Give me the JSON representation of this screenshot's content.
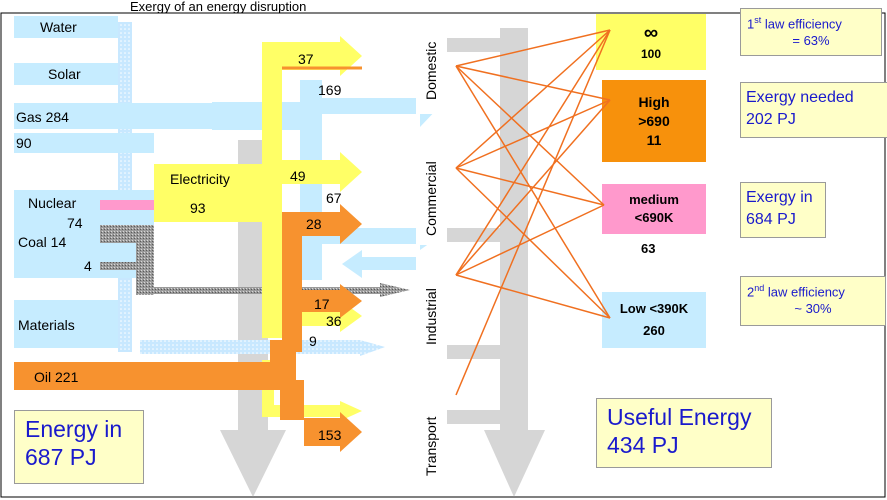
{
  "caption_top": "Exergy of an energy disruption",
  "sources": {
    "water": "Water",
    "solar": "Solar",
    "gas": "Gas 284",
    "gas_sub": "90",
    "nuclear": "Nuclear",
    "coal_top": "74",
    "coal": "Coal 14",
    "coal_small": "4",
    "materials": "Materials",
    "oil": "Oil 221"
  },
  "conversion": {
    "electricity": "Electricity",
    "electricity_value": "93"
  },
  "flows": {
    "f37": "37",
    "f169": "169",
    "f49": "49",
    "f67": "67",
    "f28": "28",
    "f17": "17",
    "f36": "36",
    "f9": "9",
    "f153": "153"
  },
  "sectors": [
    "Domestic",
    "Commercial",
    "Industrial",
    "Transport"
  ],
  "exergy_levels": {
    "infinite": {
      "symbol": "∞",
      "value": "100"
    },
    "high": {
      "line1": "High",
      "line2": ">690",
      "value": "11"
    },
    "medium": {
      "line1": "medium",
      "line2": "<690K",
      "value": "63"
    },
    "low": {
      "line1": "Low <390K",
      "value": "260"
    }
  },
  "notes": {
    "first_law": {
      "line1_pre": "1",
      "line1_sup": "st",
      "line1_post": " law efficiency",
      "line2": "= 63%"
    },
    "exergy_needed": {
      "line1": "Exergy needed",
      "line2": "202 PJ"
    },
    "exergy_in": {
      "line1": "Exergy in",
      "line2": "684 PJ"
    },
    "second_law": {
      "line1_pre": "2",
      "line1_sup": "nd",
      "line1_post": " law efficiency",
      "line2": "~ 30%"
    }
  },
  "totals": {
    "energy_in": {
      "line1": "Energy in",
      "line2": "687 PJ"
    },
    "useful": {
      "line1": "Useful Energy",
      "line2": "434 PJ"
    }
  },
  "colors": {
    "light_blue": "#c6ecff",
    "yellow": "#ffff66",
    "orange": "#f7922f",
    "grey": "#d6d6d6",
    "pink": "#ff99cc",
    "infinite_box": "#ffff66",
    "high_box": "#f7910c",
    "line": "#f07020",
    "note_text": "#1a1acc"
  }
}
